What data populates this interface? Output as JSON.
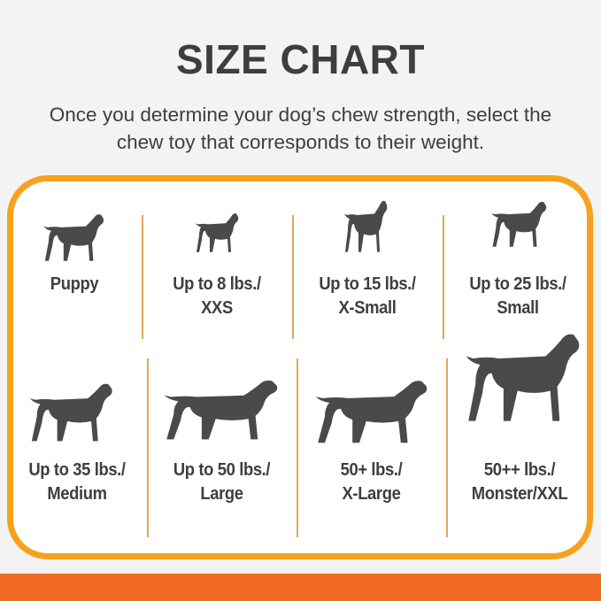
{
  "header": {
    "title": "SIZE CHART",
    "subtitle_line1": "Once you determine your dog’s chew strength, select the",
    "subtitle_line2": "chew toy that corresponds to their weight."
  },
  "colors": {
    "border": "#f7a21e",
    "footer_bar": "#f26b24",
    "silhouette": "#4a4a4c",
    "text": "#3e3e40"
  },
  "sizes": [
    {
      "icon": "puppy-silhouette-icon",
      "line1": "Puppy",
      "line2": ""
    },
    {
      "icon": "chihuahua-silhouette-icon",
      "line1": "Up to 8 lbs./",
      "line2": "XXS"
    },
    {
      "icon": "toy-terrier-silhouette-icon",
      "line1": "Up to 15 lbs./",
      "line2": "X-Small"
    },
    {
      "icon": "scottish-terrier-silhouette-icon",
      "line1": "Up to 25 lbs./",
      "line2": "Small"
    },
    {
      "icon": "beagle-silhouette-icon",
      "line1": "Up to 35 lbs./",
      "line2": "Medium"
    },
    {
      "icon": "labrador-silhouette-icon",
      "line1": "Up to 50 lbs./",
      "line2": "Large"
    },
    {
      "icon": "shepherd-silhouette-icon",
      "line1": "50+ lbs./",
      "line2": "X-Large"
    },
    {
      "icon": "great-dane-silhouette-icon",
      "line1": "50++ lbs./",
      "line2": "Monster/XXL"
    }
  ]
}
